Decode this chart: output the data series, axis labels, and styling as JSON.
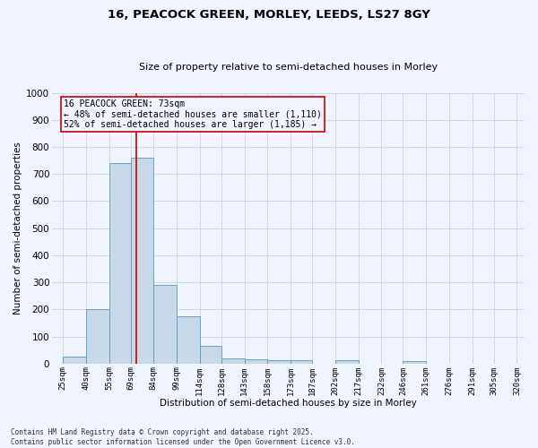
{
  "title1": "16, PEACOCK GREEN, MORLEY, LEEDS, LS27 8GY",
  "title2": "Size of property relative to semi-detached houses in Morley",
  "xlabel": "Distribution of semi-detached houses by size in Morley",
  "ylabel": "Number of semi-detached properties",
  "footnote1": "Contains HM Land Registry data © Crown copyright and database right 2025.",
  "footnote2": "Contains public sector information licensed under the Open Government Licence v3.0.",
  "annotation_line1": "16 PEACOCK GREEN: 73sqm",
  "annotation_line2": "← 48% of semi-detached houses are smaller (1,110)",
  "annotation_line3": "52% of semi-detached houses are larger (1,185) →",
  "property_size": 73,
  "bar_left_edges": [
    25,
    40,
    55,
    69,
    84,
    99,
    114,
    128,
    143,
    158,
    173,
    187,
    202,
    217,
    232,
    246,
    261,
    276,
    291,
    305
  ],
  "bar_widths": [
    15,
    15,
    14,
    15,
    15,
    15,
    14,
    15,
    15,
    15,
    14,
    15,
    15,
    15,
    14,
    15,
    15,
    15,
    14,
    15
  ],
  "bar_heights": [
    25,
    200,
    740,
    760,
    290,
    175,
    65,
    20,
    16,
    12,
    12,
    0,
    12,
    0,
    0,
    8,
    0,
    0,
    0,
    0
  ],
  "bar_color": "#c8d8e8",
  "bar_edge_color": "#5a9abf",
  "redline_color": "#cc0000",
  "grid_color": "#d0d8e8",
  "background_color": "#f0f4ff",
  "ylim": [
    0,
    1000
  ],
  "yticks": [
    0,
    100,
    200,
    300,
    400,
    500,
    600,
    700,
    800,
    900,
    1000
  ],
  "xtick_labels": [
    "25sqm",
    "40sqm",
    "55sqm",
    "69sqm",
    "84sqm",
    "99sqm",
    "114sqm",
    "128sqm",
    "143sqm",
    "158sqm",
    "173sqm",
    "187sqm",
    "202sqm",
    "217sqm",
    "232sqm",
    "246sqm",
    "261sqm",
    "276sqm",
    "291sqm",
    "305sqm",
    "320sqm"
  ],
  "xtick_positions": [
    25,
    40,
    55,
    69,
    84,
    99,
    114,
    128,
    143,
    158,
    173,
    187,
    202,
    217,
    232,
    246,
    261,
    276,
    291,
    305,
    320
  ],
  "title1_fontsize": 9.5,
  "title2_fontsize": 8.0,
  "xlabel_fontsize": 7.5,
  "ylabel_fontsize": 7.5,
  "ann_fontsize": 7.0,
  "footnote_fontsize": 5.5
}
